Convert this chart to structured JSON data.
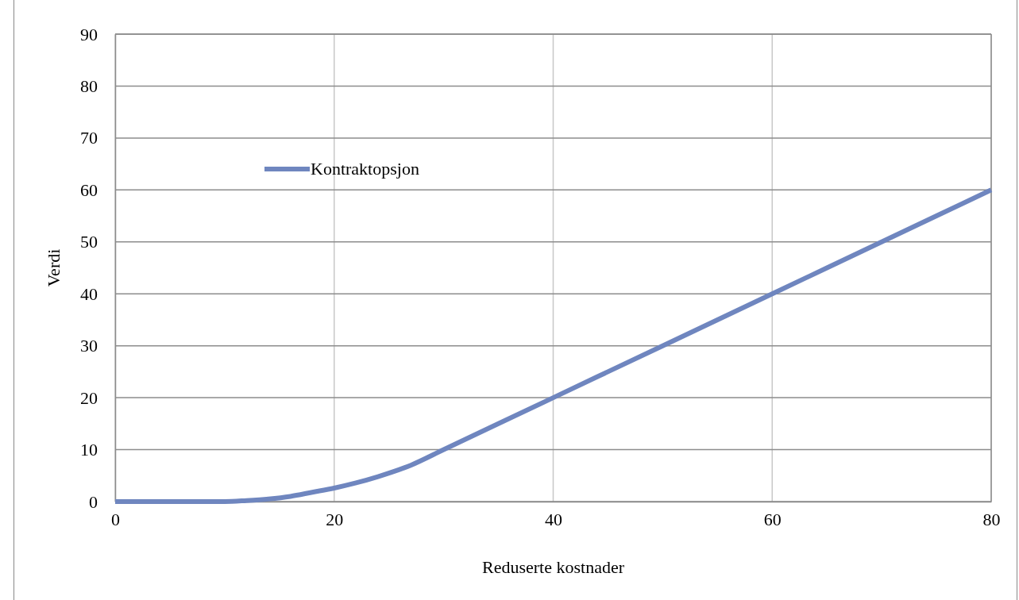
{
  "chart_data": {
    "type": "line",
    "xlabel": "Reduserte kostnader",
    "ylabel": "Verdi",
    "x": [
      0,
      10,
      12,
      14,
      16,
      18,
      20,
      22,
      24,
      27,
      30,
      40,
      50,
      60,
      70,
      80
    ],
    "series": [
      {
        "name": "Kontraktopsjon",
        "color": "#6f86bf",
        "values": [
          0,
          0,
          0.2,
          0.5,
          1,
          1.8,
          2.6,
          3.6,
          4.8,
          7,
          10,
          20,
          30,
          40,
          50,
          60
        ]
      }
    ],
    "xlim": [
      0,
      80
    ],
    "xticks": [
      0,
      20,
      40,
      60,
      80
    ],
    "ylim": [
      0,
      90
    ],
    "yticks": [
      0,
      10,
      20,
      30,
      40,
      50,
      60,
      70,
      80,
      90
    ],
    "grid": true,
    "legend": "top left",
    "marker": "none",
    "line_style": "solid"
  }
}
